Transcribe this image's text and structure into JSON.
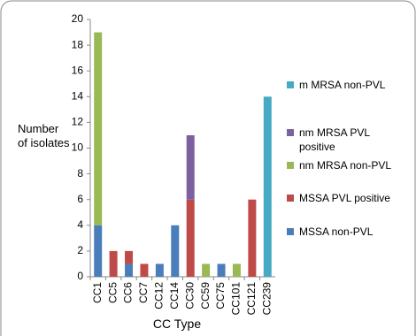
{
  "chart_data": {
    "type": "stacked_bar",
    "y_label": "Number of isolates",
    "x_label": "CC Type",
    "categories": [
      "CC1",
      "CC5",
      "CC6",
      "CC7",
      "CC12",
      "CC14",
      "CC30",
      "CC59",
      "CC75",
      "CC101",
      "CC121",
      "CC239"
    ],
    "series": [
      {
        "name": "MSSA non-PVL",
        "color": "#4a7ebb",
        "values": [
          4,
          0,
          1,
          0,
          1,
          4,
          0,
          0,
          1,
          0,
          0,
          0
        ]
      },
      {
        "name": "MSSA PVL positive",
        "color": "#be4b48",
        "values": [
          0,
          2,
          1,
          1,
          0,
          0,
          6,
          0,
          0,
          0,
          6,
          0
        ]
      },
      {
        "name": "nm MRSA non-PVL",
        "color": "#98b954",
        "values": [
          15,
          0,
          0,
          0,
          0,
          0,
          0,
          1,
          0,
          1,
          0,
          0
        ]
      },
      {
        "name": "nm MRSA PVL positive",
        "color": "#7d60a0",
        "values": [
          0,
          0,
          0,
          0,
          0,
          0,
          5,
          0,
          0,
          0,
          0,
          0
        ]
      },
      {
        "name": "m MRSA non-PVL",
        "color": "#46aac5",
        "values": [
          0,
          0,
          0,
          0,
          0,
          0,
          0,
          0,
          0,
          0,
          0,
          14
        ]
      }
    ],
    "ylim": [
      0,
      20
    ],
    "yticks": [
      0,
      2,
      4,
      6,
      8,
      10,
      12,
      14,
      16,
      18,
      20
    ],
    "legend": "right"
  }
}
